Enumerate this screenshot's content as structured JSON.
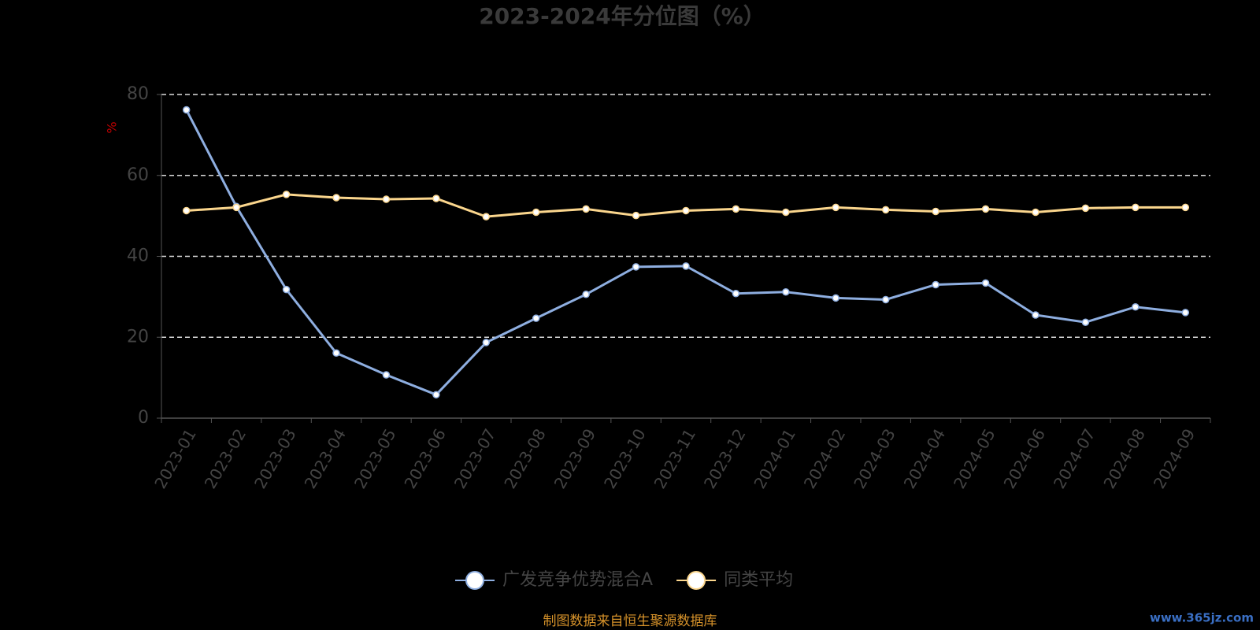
{
  "chart_data": {
    "type": "line",
    "title": "2023-2024年分位图（%）",
    "y_label": "%",
    "categories": [
      "2023-01",
      "2023-02",
      "2023-03",
      "2023-04",
      "2023-05",
      "2023-06",
      "2023-07",
      "2023-08",
      "2023-09",
      "2023-10",
      "2023-11",
      "2023-12",
      "2024-01",
      "2024-02",
      "2024-03",
      "2024-04",
      "2024-05",
      "2024-06",
      "2024-07",
      "2024-08",
      "2024-09"
    ],
    "series": [
      {
        "name": "广发竞争优势混合A",
        "color": "#8eaee0",
        "values": [
          76.2,
          52.3,
          31.8,
          16.1,
          10.7,
          5.8,
          18.7,
          24.7,
          30.6,
          37.4,
          37.6,
          30.8,
          31.2,
          29.7,
          29.3,
          33.0,
          33.4,
          25.5,
          23.7,
          27.5,
          26.1
        ]
      },
      {
        "name": "同类平均",
        "color": "#fbd68d",
        "values": [
          51.3,
          52.1,
          55.3,
          54.5,
          54.1,
          54.3,
          49.8,
          50.9,
          51.7,
          50.1,
          51.3,
          51.7,
          50.9,
          52.1,
          51.5,
          51.1,
          51.7,
          50.9,
          51.9,
          52.1,
          52.1
        ]
      }
    ],
    "ylim": [
      0,
      80
    ],
    "yticks": [
      0,
      20,
      40,
      60,
      80
    ],
    "grid": true,
    "source": "制图数据来自恒生聚源数据库",
    "watermark": "www.365jz.com"
  }
}
